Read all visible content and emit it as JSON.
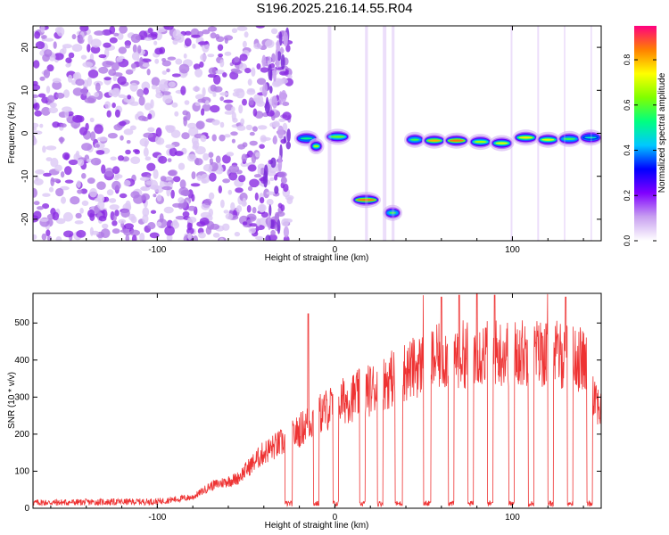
{
  "title": "S196.2025.216.14.55.R04",
  "chart_data": [
    {
      "type": "heatmap",
      "xlabel": "Height of straight line (km)",
      "ylabel": "Frequency (Hz)",
      "xlim": [
        -170,
        150
      ],
      "ylim": [
        -25,
        25
      ],
      "xticks": [
        -100,
        0,
        100
      ],
      "yticks": [
        -20,
        -10,
        0,
        10,
        20
      ],
      "colorbar": {
        "label": "Normalized spectral amplitude",
        "ticks": [
          0.0,
          0.2,
          0.4,
          0.6,
          0.8
        ],
        "range": [
          0,
          0.95
        ],
        "colormap": [
          "#ffffff",
          "#c8a0f0",
          "#8000ff",
          "#0000ff",
          "#00c8ff",
          "#00ff80",
          "#80ff00",
          "#ffff00",
          "#ff8000",
          "#ff0080"
        ]
      },
      "segments": [
        {
          "x": [
            -170,
            -25
          ],
          "kind": "noise",
          "y_range": [
            -25,
            25
          ]
        },
        {
          "x": [
            -22,
            -10
          ],
          "kind": "tone",
          "y": -1.2,
          "amplitude": 0.55
        },
        {
          "x": [
            -14,
            -7
          ],
          "kind": "tone",
          "y": -3.0,
          "amplitude": 0.7
        },
        {
          "x": [
            -5,
            8
          ],
          "kind": "tone",
          "y": -0.8,
          "amplitude": 0.65
        },
        {
          "x": [
            10,
            25
          ],
          "kind": "tone",
          "y": -15.5,
          "amplitude": 0.9
        },
        {
          "x": [
            28,
            37
          ],
          "kind": "tone",
          "y": -18.5,
          "amplitude": 0.6
        },
        {
          "x": [
            40,
            50
          ],
          "kind": "tone",
          "y": -1.5,
          "amplitude": 0.6
        },
        {
          "x": [
            50,
            62
          ],
          "kind": "tone",
          "y": -1.7,
          "amplitude": 0.85
        },
        {
          "x": [
            62,
            75
          ],
          "kind": "tone",
          "y": -1.7,
          "amplitude": 0.9
        },
        {
          "x": [
            76,
            88
          ],
          "kind": "tone",
          "y": -2.0,
          "amplitude": 0.7
        },
        {
          "x": [
            88,
            100
          ],
          "kind": "tone",
          "y": -2.3,
          "amplitude": 0.75
        },
        {
          "x": [
            101,
            114
          ],
          "kind": "tone",
          "y": -1.0,
          "amplitude": 0.8
        },
        {
          "x": [
            114,
            126
          ],
          "kind": "tone",
          "y": -1.5,
          "amplitude": 0.75
        },
        {
          "x": [
            126,
            138
          ],
          "kind": "tone",
          "y": -1.3,
          "amplitude": 0.6
        },
        {
          "x": [
            138,
            150
          ],
          "kind": "tone",
          "y": -1.0,
          "amplitude": 0.5
        }
      ]
    },
    {
      "type": "line",
      "xlabel": "Height of straight line (km)",
      "ylabel": "SNR (10 * v/v)",
      "xlim": [
        -170,
        150
      ],
      "ylim": [
        0,
        580
      ],
      "xticks": [
        -100,
        0,
        100
      ],
      "yticks": [
        0,
        100,
        200,
        300,
        400,
        500
      ],
      "color": "#ee3333",
      "trend": [
        [
          -170,
          15
        ],
        [
          -100,
          18
        ],
        [
          -80,
          30
        ],
        [
          -70,
          60
        ],
        [
          -55,
          80
        ],
        [
          -40,
          150
        ],
        [
          -25,
          190
        ],
        [
          -10,
          250
        ],
        [
          0,
          280
        ],
        [
          20,
          320
        ],
        [
          40,
          370
        ],
        [
          60,
          410
        ],
        [
          80,
          420
        ],
        [
          100,
          420
        ],
        [
          120,
          420
        ],
        [
          140,
          400
        ],
        [
          150,
          260
        ]
      ],
      "dropouts": [
        [
          -28,
          -24
        ],
        [
          -12,
          -9
        ],
        [
          -1,
          2
        ],
        [
          14,
          17
        ],
        [
          24,
          27
        ],
        [
          34,
          38
        ],
        [
          50,
          54
        ],
        [
          64,
          67
        ],
        [
          75,
          78
        ],
        [
          86,
          89
        ],
        [
          98,
          101
        ],
        [
          109,
          112
        ],
        [
          120,
          123
        ],
        [
          131,
          134
        ],
        [
          142,
          145
        ]
      ],
      "peaks": [
        [
          -15,
          525
        ],
        [
          50,
          575
        ],
        [
          60,
          570
        ],
        [
          70,
          575
        ],
        [
          80,
          578
        ],
        [
          90,
          575
        ],
        [
          100,
          575
        ],
        [
          110,
          570
        ],
        [
          120,
          578
        ],
        [
          130,
          570
        ]
      ]
    }
  ]
}
